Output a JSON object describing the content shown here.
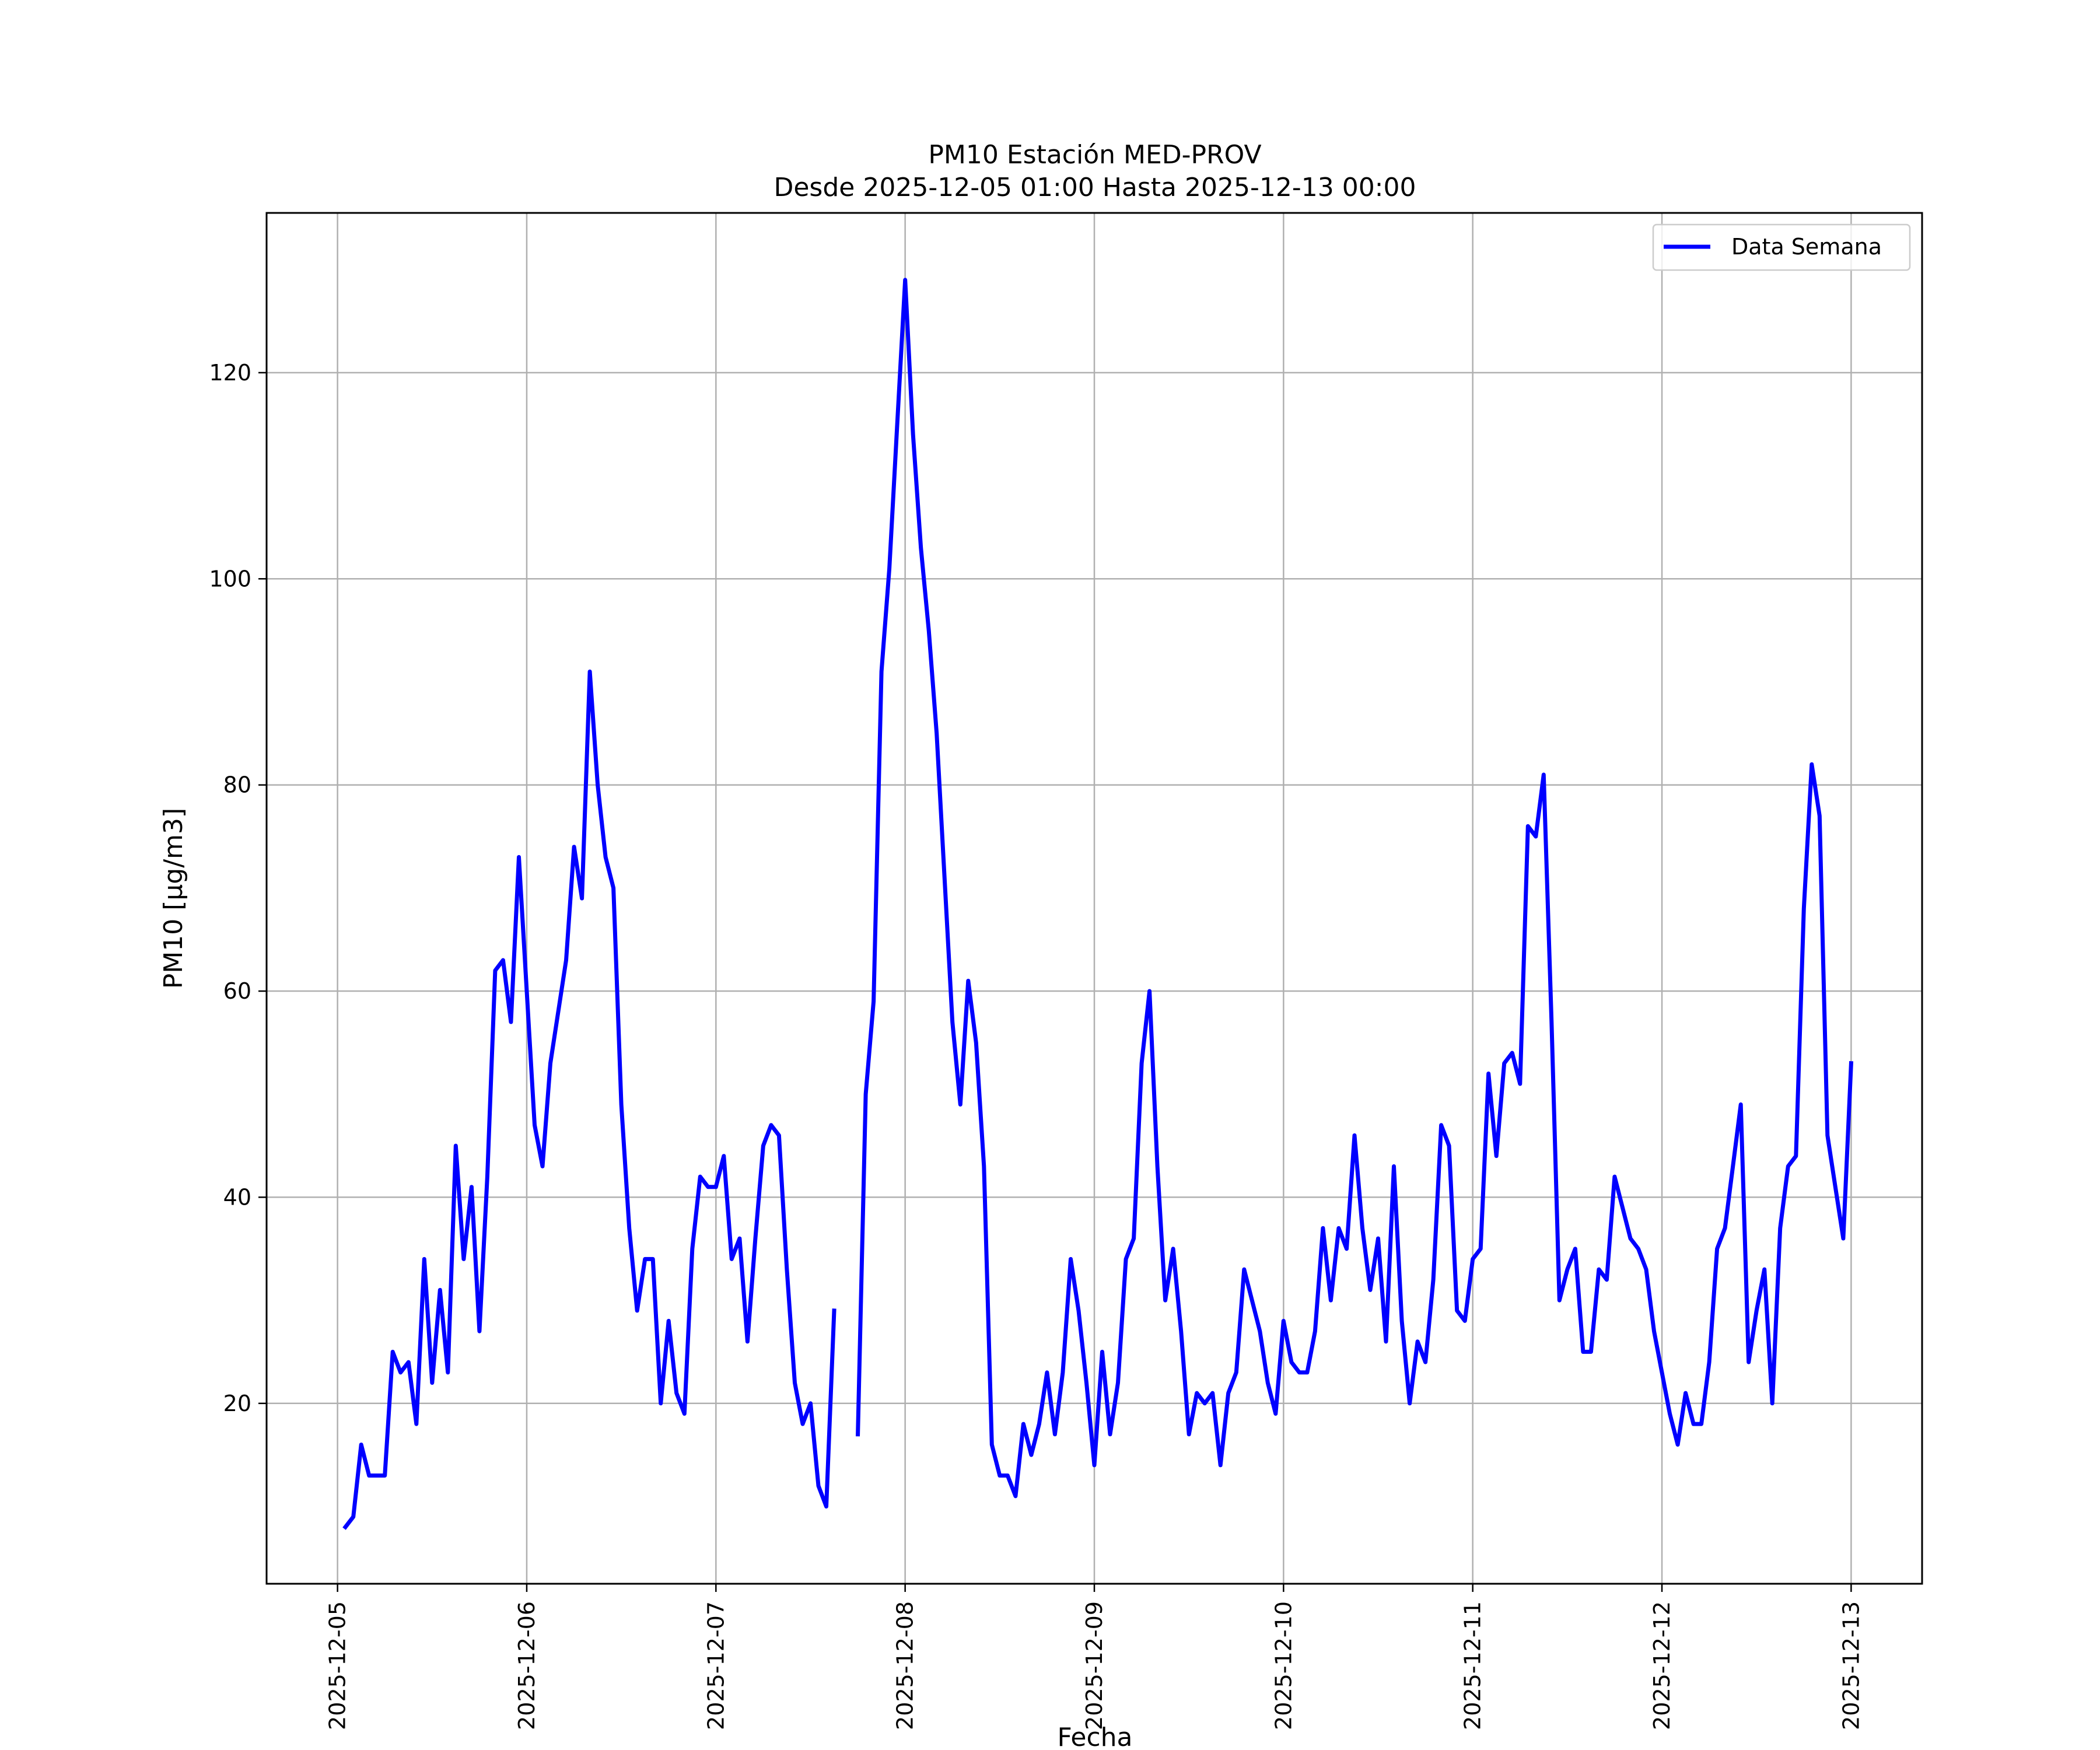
{
  "chart_data": {
    "type": "line",
    "title": "PM10 Estación MED-PROV",
    "subtitle": "Desde 2025-12-05 01:00 Hasta 2025-12-13 00:00",
    "xlabel": "Fecha",
    "ylabel": "PM10 [μg/m3]",
    "x_ticks": [
      "2025-12-05",
      "2025-12-06",
      "2025-12-07",
      "2025-12-08",
      "2025-12-09",
      "2025-12-10",
      "2025-12-11",
      "2025-12-12",
      "2025-12-13"
    ],
    "y_ticks": [
      20,
      40,
      60,
      80,
      100,
      120
    ],
    "xlim": [
      "2025-12-04 15:00",
      "2025-12-13 09:00"
    ],
    "ylim": [
      2.5,
      135.5
    ],
    "grid": true,
    "legend_position": "upper right",
    "series": [
      {
        "name": "Data Semana",
        "color": "#0000ff",
        "x": [
          "2025-12-05 01:00",
          "2025-12-05 02:00",
          "2025-12-05 03:00",
          "2025-12-05 04:00",
          "2025-12-05 05:00",
          "2025-12-05 06:00",
          "2025-12-05 07:00",
          "2025-12-05 08:00",
          "2025-12-05 09:00",
          "2025-12-05 10:00",
          "2025-12-05 11:00",
          "2025-12-05 12:00",
          "2025-12-05 13:00",
          "2025-12-05 14:00",
          "2025-12-05 15:00",
          "2025-12-05 16:00",
          "2025-12-05 17:00",
          "2025-12-05 18:00",
          "2025-12-05 19:00",
          "2025-12-05 20:00",
          "2025-12-05 21:00",
          "2025-12-05 22:00",
          "2025-12-05 23:00",
          "2025-12-06 00:00",
          "2025-12-06 01:00",
          "2025-12-06 02:00",
          "2025-12-06 03:00",
          "2025-12-06 04:00",
          "2025-12-06 05:00",
          "2025-12-06 06:00",
          "2025-12-06 07:00",
          "2025-12-06 08:00",
          "2025-12-06 09:00",
          "2025-12-06 10:00",
          "2025-12-06 11:00",
          "2025-12-06 12:00",
          "2025-12-06 13:00",
          "2025-12-06 14:00",
          "2025-12-06 15:00",
          "2025-12-06 16:00",
          "2025-12-06 17:00",
          "2025-12-06 18:00",
          "2025-12-06 19:00",
          "2025-12-06 20:00",
          "2025-12-06 21:00",
          "2025-12-06 22:00",
          "2025-12-06 23:00",
          "2025-12-07 00:00",
          "2025-12-07 01:00",
          "2025-12-07 02:00",
          "2025-12-07 03:00",
          "2025-12-07 04:00",
          "2025-12-07 05:00",
          "2025-12-07 06:00",
          "2025-12-07 07:00",
          "2025-12-07 08:00",
          "2025-12-07 09:00",
          "2025-12-07 10:00",
          "2025-12-07 11:00",
          "2025-12-07 12:00",
          "2025-12-07 13:00",
          "2025-12-07 14:00",
          "2025-12-07 15:00",
          "2025-12-07 16:00",
          "2025-12-07 17:00",
          "2025-12-07 18:00",
          "2025-12-07 19:00",
          "2025-12-07 20:00",
          "2025-12-07 21:00",
          "2025-12-07 22:00",
          "2025-12-07 23:00",
          "2025-12-08 00:00",
          "2025-12-08 01:00",
          "2025-12-08 02:00",
          "2025-12-08 03:00",
          "2025-12-08 04:00",
          "2025-12-08 05:00",
          "2025-12-08 06:00",
          "2025-12-08 07:00",
          "2025-12-08 08:00",
          "2025-12-08 09:00",
          "2025-12-08 10:00",
          "2025-12-08 11:00",
          "2025-12-08 12:00",
          "2025-12-08 13:00",
          "2025-12-08 14:00",
          "2025-12-08 15:00",
          "2025-12-08 16:00",
          "2025-12-08 17:00",
          "2025-12-08 18:00",
          "2025-12-08 19:00",
          "2025-12-08 20:00",
          "2025-12-08 21:00",
          "2025-12-08 22:00",
          "2025-12-08 23:00",
          "2025-12-09 00:00",
          "2025-12-09 01:00",
          "2025-12-09 02:00",
          "2025-12-09 03:00",
          "2025-12-09 04:00",
          "2025-12-09 05:00",
          "2025-12-09 06:00",
          "2025-12-09 07:00",
          "2025-12-09 08:00",
          "2025-12-09 09:00",
          "2025-12-09 10:00",
          "2025-12-09 11:00",
          "2025-12-09 12:00",
          "2025-12-09 13:00",
          "2025-12-09 14:00",
          "2025-12-09 15:00",
          "2025-12-09 16:00",
          "2025-12-09 17:00",
          "2025-12-09 18:00",
          "2025-12-09 19:00",
          "2025-12-09 20:00",
          "2025-12-09 21:00",
          "2025-12-09 22:00",
          "2025-12-09 23:00",
          "2025-12-10 00:00",
          "2025-12-10 01:00",
          "2025-12-10 02:00",
          "2025-12-10 03:00",
          "2025-12-10 04:00",
          "2025-12-10 05:00",
          "2025-12-10 06:00",
          "2025-12-10 07:00",
          "2025-12-10 08:00",
          "2025-12-10 09:00",
          "2025-12-10 10:00",
          "2025-12-10 11:00",
          "2025-12-10 12:00",
          "2025-12-10 13:00",
          "2025-12-10 14:00",
          "2025-12-10 15:00",
          "2025-12-10 16:00",
          "2025-12-10 17:00",
          "2025-12-10 18:00",
          "2025-12-10 19:00",
          "2025-12-10 20:00",
          "2025-12-10 21:00",
          "2025-12-10 22:00",
          "2025-12-10 23:00",
          "2025-12-11 00:00",
          "2025-12-11 01:00",
          "2025-12-11 02:00",
          "2025-12-11 03:00",
          "2025-12-11 04:00",
          "2025-12-11 05:00",
          "2025-12-11 06:00",
          "2025-12-11 07:00",
          "2025-12-11 08:00",
          "2025-12-11 09:00",
          "2025-12-11 10:00",
          "2025-12-11 11:00",
          "2025-12-11 12:00",
          "2025-12-11 13:00",
          "2025-12-11 14:00",
          "2025-12-11 15:00",
          "2025-12-11 16:00",
          "2025-12-11 17:00",
          "2025-12-11 18:00",
          "2025-12-11 19:00",
          "2025-12-11 20:00",
          "2025-12-11 21:00",
          "2025-12-11 22:00",
          "2025-12-11 23:00",
          "2025-12-12 00:00",
          "2025-12-12 01:00",
          "2025-12-12 02:00",
          "2025-12-12 03:00",
          "2025-12-12 04:00",
          "2025-12-12 05:00",
          "2025-12-12 06:00",
          "2025-12-12 07:00",
          "2025-12-12 08:00",
          "2025-12-12 09:00",
          "2025-12-12 10:00",
          "2025-12-12 11:00",
          "2025-12-12 12:00",
          "2025-12-12 13:00",
          "2025-12-12 14:00",
          "2025-12-12 15:00",
          "2025-12-12 16:00",
          "2025-12-12 17:00",
          "2025-12-12 18:00",
          "2025-12-12 19:00",
          "2025-12-12 20:00",
          "2025-12-12 21:00",
          "2025-12-12 22:00",
          "2025-12-12 23:00",
          "2025-12-13 00:00"
        ],
        "values": [
          8,
          9,
          16,
          13,
          13,
          13,
          25,
          23,
          24,
          18,
          34,
          22,
          31,
          23,
          45,
          34,
          41,
          27,
          42,
          62,
          63,
          57,
          73,
          60,
          47,
          43,
          53,
          58,
          63,
          74,
          69,
          91,
          80,
          73,
          70,
          49,
          37,
          29,
          34,
          34,
          20,
          28,
          21,
          19,
          35,
          42,
          41,
          41,
          44,
          34,
          36,
          26,
          36,
          45,
          47,
          46,
          33,
          22,
          18,
          20,
          12,
          10,
          29,
          null,
          null,
          17,
          50,
          59,
          91,
          101,
          115,
          129,
          114,
          103,
          95,
          85,
          71,
          57,
          49,
          61,
          55,
          43,
          16,
          13,
          13,
          11,
          18,
          15,
          18,
          23,
          17,
          23,
          34,
          29,
          22,
          14,
          25,
          17,
          22,
          34,
          36,
          53,
          60,
          43,
          30,
          35,
          27,
          17,
          21,
          20,
          21,
          14,
          21,
          23,
          33,
          30,
          27,
          22,
          19,
          28,
          24,
          23,
          23,
          27,
          37,
          30,
          37,
          35,
          46,
          37,
          31,
          36,
          26,
          43,
          28,
          20,
          26,
          24,
          32,
          47,
          45,
          29,
          28,
          34,
          35,
          52,
          44,
          53,
          54,
          51,
          76,
          75,
          81,
          57,
          30,
          33,
          35,
          25,
          25,
          33,
          32,
          42,
          39,
          36,
          35,
          33,
          27,
          23,
          19,
          16,
          21,
          18,
          18,
          24,
          35,
          37,
          43,
          49,
          24,
          29,
          33,
          20,
          37,
          43,
          44,
          68,
          82,
          77,
          46,
          41,
          36,
          53
        ]
      }
    ]
  }
}
